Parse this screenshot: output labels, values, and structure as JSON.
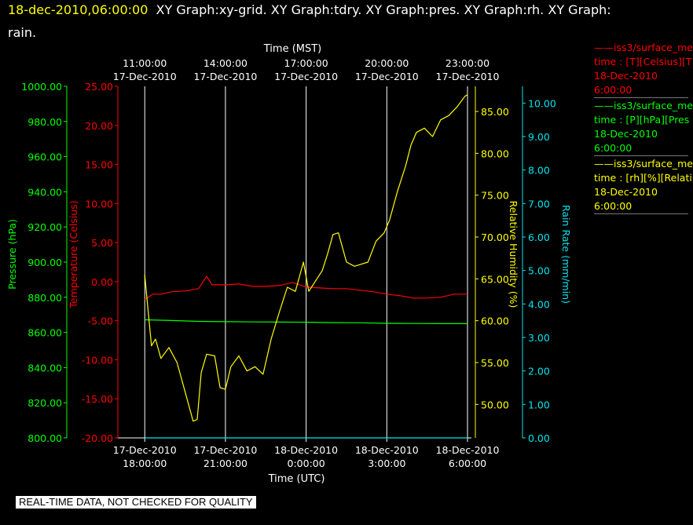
{
  "header": {
    "timestamp": "18-dec-2010,06:00:00",
    "graphs_line1": "XY Graph:xy-grid.  XY Graph:tdry.  XY Graph:pres.  XY Graph:rh.  XY Graph:",
    "graphs_line2": "rain."
  },
  "legend": [
    {
      "color": "#ff0000",
      "name": "iss3/surface_me",
      "field": "time : [T][Celsius][T",
      "date": "18-Dec-2010",
      "time": "6:00:00"
    },
    {
      "color": "#00ff00",
      "name": "iss3/surface_me",
      "field": "time : [P][hPa][Pres",
      "date": "18-Dec-2010",
      "time": "6:00:00"
    },
    {
      "color": "#ffff00",
      "name": "iss3/surface_me",
      "field": "time : [rh][%][Relati",
      "date": "18-Dec-2010",
      "time": "6:00:00"
    }
  ],
  "disclaimer": "REAL-TIME DATA, NOT CHECKED FOR QUALITY",
  "chart_data": {
    "type": "line",
    "x_title_top": "Time (MST)",
    "x_title_bottom": "Time (UTC)",
    "x_range_hours_utc": [
      17,
      30
    ],
    "x_ticks_top": [
      {
        "time": "11:00:00",
        "date": "17-Dec-2010"
      },
      {
        "time": "14:00:00",
        "date": "17-Dec-2010"
      },
      {
        "time": "17:00:00",
        "date": "17-Dec-2010"
      },
      {
        "time": "20:00:00",
        "date": "17-Dec-2010"
      },
      {
        "time": "23:00:00",
        "date": "17-Dec-2010"
      }
    ],
    "x_ticks_bottom": [
      {
        "date": "17-Dec-2010",
        "time": "18:00:00"
      },
      {
        "date": "17-Dec-2010",
        "time": "21:00:00"
      },
      {
        "date": "18-Dec-2010",
        "time": "0:00:00"
      },
      {
        "date": "18-Dec-2010",
        "time": "3:00:00"
      },
      {
        "date": "18-Dec-2010",
        "time": "6:00:00"
      }
    ],
    "axes": [
      {
        "id": "pressure",
        "label": "Pressure (hPa)",
        "color": "#00ff00",
        "range": [
          800,
          1000
        ],
        "ticks": [
          "800.00",
          "820.00",
          "840.00",
          "860.00",
          "880.00",
          "900.00",
          "920.00",
          "940.00",
          "960.00",
          "980.00",
          "1000.00"
        ]
      },
      {
        "id": "temperature",
        "label": "Temperature (Celsius)",
        "color": "#ff0000",
        "range": [
          -20,
          25
        ],
        "ticks": [
          "-20.00",
          "-15.00",
          "-10.00",
          "-5.00",
          "0.00",
          "5.00",
          "10.00",
          "15.00",
          "20.00",
          "25.00"
        ]
      },
      {
        "id": "rh",
        "label": "Relative Humidity (%)",
        "color": "#ffff00",
        "range": [
          46,
          88
        ],
        "ticks": [
          "50.00",
          "55.00",
          "60.00",
          "65.00",
          "70.00",
          "75.00",
          "80.00",
          "85.00"
        ]
      },
      {
        "id": "rain",
        "label": "Rain Rate (mm/min)",
        "color": "#00e5ee",
        "range": [
          0,
          10.5
        ],
        "ticks": [
          "0.00",
          "1.00",
          "2.00",
          "3.00",
          "4.00",
          "5.00",
          "6.00",
          "7.00",
          "8.00",
          "9.00",
          "10.00"
        ]
      }
    ],
    "series": [
      {
        "axis": "temperature",
        "color": "#ff0000",
        "x": [
          18,
          18.3,
          18.6,
          19,
          19.5,
          20,
          20.3,
          20.5,
          21,
          21.5,
          22,
          22.5,
          23,
          23.5,
          24,
          24.5,
          25,
          25.5,
          26,
          26.5,
          27,
          27.5,
          28,
          28.5,
          29,
          29.5,
          30
        ],
        "y": [
          -2.3,
          -1.6,
          -1.6,
          -1.3,
          -1.2,
          -0.9,
          0.7,
          -0.4,
          -0.4,
          -0.3,
          -0.6,
          -0.6,
          -0.5,
          -0.1,
          -0.7,
          -0.8,
          -0.9,
          -0.9,
          -1.1,
          -1.3,
          -1.6,
          -1.8,
          -2.1,
          -2.1,
          -2.0,
          -1.6,
          -1.6
        ]
      },
      {
        "axis": "pressure",
        "color": "#00ff00",
        "x": [
          18,
          19,
          20,
          21,
          22,
          23,
          24,
          25,
          26,
          27,
          28,
          29,
          30
        ],
        "y": [
          867.2,
          866.8,
          866.3,
          866.1,
          866.0,
          865.9,
          865.8,
          865.6,
          865.5,
          865.2,
          865.1,
          865.0,
          865.0
        ]
      },
      {
        "axis": "rh",
        "color": "#ffff00",
        "x": [
          18,
          18.1,
          18.25,
          18.4,
          18.6,
          18.9,
          19.2,
          19.5,
          19.8,
          19.95,
          20.1,
          20.3,
          20.6,
          20.8,
          21,
          21.2,
          21.5,
          21.8,
          22.1,
          22.4,
          22.7,
          23,
          23.3,
          23.6,
          23.9,
          24.1,
          24.3,
          24.6,
          24.8,
          25,
          25.2,
          25.5,
          25.8,
          26,
          26.3,
          26.6,
          26.9,
          27.1,
          27.4,
          27.7,
          27.9,
          28.1,
          28.4,
          28.7,
          29,
          29.3,
          29.6,
          29.9,
          30
        ],
        "y": [
          65.5,
          62.0,
          57.0,
          57.8,
          55.5,
          56.8,
          55.0,
          51.5,
          48.0,
          48.2,
          53.8,
          56.0,
          55.8,
          52.0,
          51.8,
          54.5,
          55.8,
          54.0,
          54.5,
          53.6,
          57.8,
          61.0,
          64.0,
          63.5,
          67.0,
          63.5,
          64.5,
          66.0,
          68.0,
          70.3,
          70.5,
          67.0,
          66.5,
          66.7,
          67.0,
          69.5,
          70.5,
          72.0,
          75.5,
          78.5,
          81.0,
          82.5,
          83.0,
          82.0,
          84.0,
          84.5,
          85.5,
          86.8,
          87.0
        ]
      },
      {
        "axis": "rain",
        "color": "#00e5ee",
        "x": [
          18,
          30
        ],
        "y": [
          0.0,
          0.0
        ]
      }
    ],
    "grid": true
  }
}
